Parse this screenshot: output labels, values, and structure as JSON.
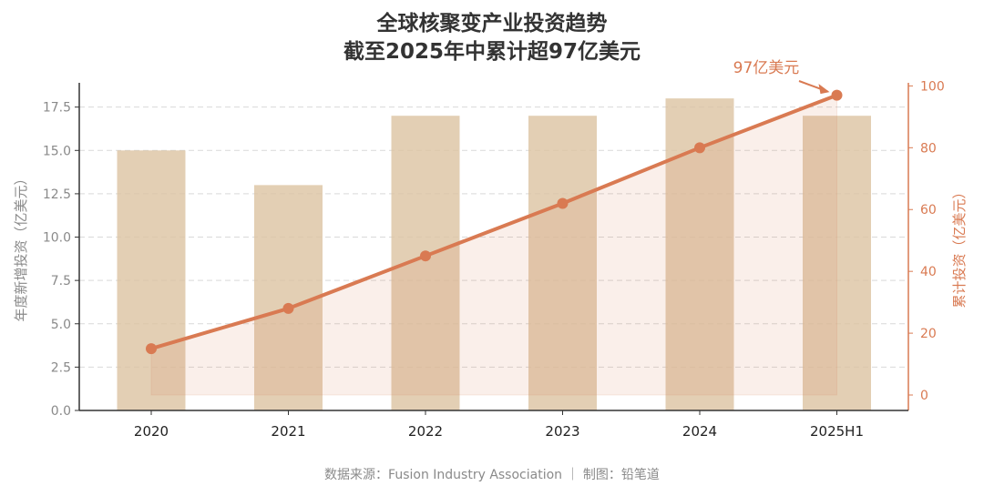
{
  "chart_data": {
    "type": "bar+line",
    "title": "全球核聚变产业投资趋势",
    "subtitle": "截至2025年中累计超97亿美元",
    "categories": [
      "2020",
      "2021",
      "2022",
      "2023",
      "2024",
      "2025H1"
    ],
    "bar_series": {
      "values": [
        15,
        13,
        17,
        17,
        18,
        17
      ],
      "color": "#dcc3a1"
    },
    "line_series": {
      "values": [
        15,
        28,
        45,
        62,
        80,
        97
      ],
      "color": "#d97a52"
    },
    "y_left": {
      "label": "年度新增投资（亿美元）",
      "range": [
        0,
        18.9
      ],
      "ticks": [
        "0.0",
        "2.5",
        "5.0",
        "7.5",
        "10.0",
        "12.5",
        "15.0",
        "17.5"
      ]
    },
    "y_right": {
      "label": "累计投资（亿美元）",
      "range": [
        -5,
        101
      ],
      "ticks": [
        "0",
        "20",
        "40",
        "60",
        "80",
        "100"
      ]
    },
    "annotation": {
      "text": "97亿美元",
      "target_category": "2025H1",
      "target_value": 97
    },
    "grid": "horizontal-dashed",
    "source": "数据来源：Fusion Industry Association ｜ 制图：铅笔道"
  }
}
